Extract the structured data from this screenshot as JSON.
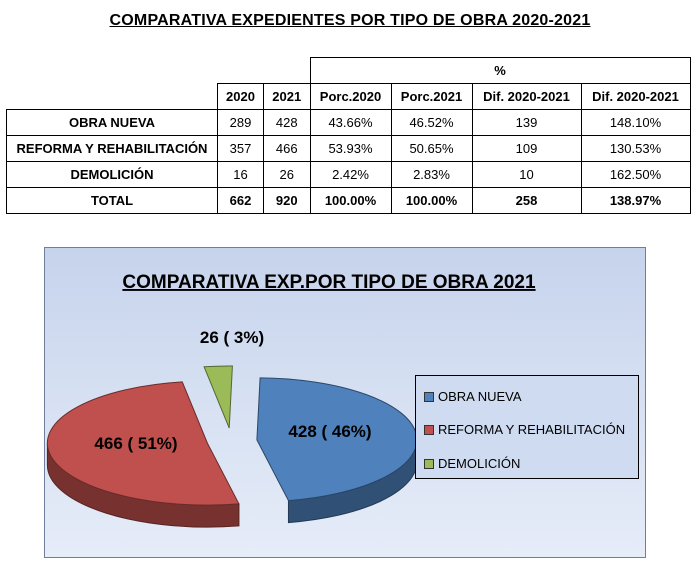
{
  "page_title": "COMPARATIVA EXPEDIENTES POR TIPO DE OBRA 2020-2021",
  "table": {
    "group_header": "%",
    "columns": [
      "2020",
      "2021",
      "Porc.2020",
      "Porc.2021",
      "Dif. 2020-2021",
      "Dif. 2020-2021"
    ],
    "rows": [
      {
        "label": "OBRA NUEVA",
        "cells": [
          "289",
          "428",
          "43.66%",
          "46.52%",
          "139",
          "148.10%"
        ]
      },
      {
        "label": "REFORMA Y REHABILITACIÓN",
        "cells": [
          "357",
          "466",
          "53.93%",
          "50.65%",
          "109",
          "130.53%"
        ]
      },
      {
        "label": "DEMOLICIÓN",
        "cells": [
          "16",
          "26",
          "2.42%",
          "2.83%",
          "10",
          "162.50%"
        ]
      }
    ],
    "total": {
      "label": "TOTAL",
      "cells": [
        "662",
        "920",
        "100.00%",
        "100.00%",
        "258",
        "138.97%"
      ]
    }
  },
  "chart_data": {
    "type": "pie",
    "title": "COMPARATIVA EXP.POR TIPO DE OBRA 2021",
    "legend_position": "right",
    "slices": [
      {
        "name": "OBRA NUEVA",
        "value": 428,
        "label": "428 ( 46%)",
        "color": "#4f81bd"
      },
      {
        "name": "REFORMA Y REHABILITACIÓN",
        "value": 466,
        "label": "466 ( 51%)",
        "color": "#c0504d"
      },
      {
        "name": "DEMOLICIÓN",
        "value": 26,
        "label": "26 ( 3%)",
        "color": "#9bbb59"
      }
    ]
  }
}
